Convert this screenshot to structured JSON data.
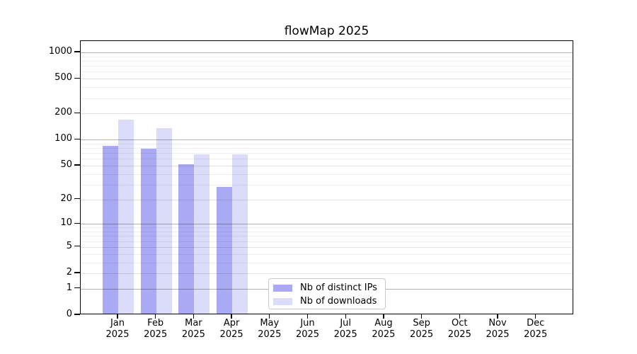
{
  "window": {
    "background": "#ffffff"
  },
  "chart_data": {
    "type": "bar",
    "title": "flowMap 2025",
    "x_months": [
      "Jan",
      "Feb",
      "Mar",
      "Apr",
      "May",
      "Jun",
      "Jul",
      "Aug",
      "Sep",
      "Oct",
      "Nov",
      "Dec"
    ],
    "x_year": "2025",
    "y_scale": "symlog",
    "ylim": [
      0,
      1350
    ],
    "y_tick_labels": [
      "1000",
      "500",
      "200",
      "100",
      "50",
      "20",
      "10",
      "5",
      "2",
      "1",
      "0"
    ],
    "y_tick_values": [
      1000,
      500,
      200,
      100,
      50,
      20,
      10,
      5,
      2,
      1,
      0
    ],
    "y_grid_major_values": [
      1,
      10,
      100,
      1000
    ],
    "y_grid_mid_values": [
      2,
      5,
      20,
      50,
      200,
      500
    ],
    "y_grid_minor_values": [
      3,
      4,
      6,
      7,
      8,
      9,
      30,
      40,
      60,
      70,
      80,
      90,
      300,
      400,
      600,
      700,
      800,
      900
    ],
    "grid": "horizontal major + minor gridlines",
    "legend_position": "bottom-center-left inside plot",
    "series": [
      {
        "name": "Nb of distinct IPs",
        "color": "#a9a9f4",
        "values": [
          85,
          78,
          52,
          28,
          null,
          null,
          null,
          null,
          null,
          null,
          null,
          null
        ]
      },
      {
        "name": "Nb of downloads",
        "color": "#dbdbfa",
        "values": [
          170,
          135,
          68,
          68,
          null,
          null,
          null,
          null,
          null,
          null,
          null,
          null
        ]
      }
    ],
    "colors": {
      "grid_major": "#b3b3b3",
      "grid_mid": "#e0e0e0",
      "grid_minor": "#eeeeee",
      "axis": "#000000",
      "text": "#000000"
    }
  }
}
